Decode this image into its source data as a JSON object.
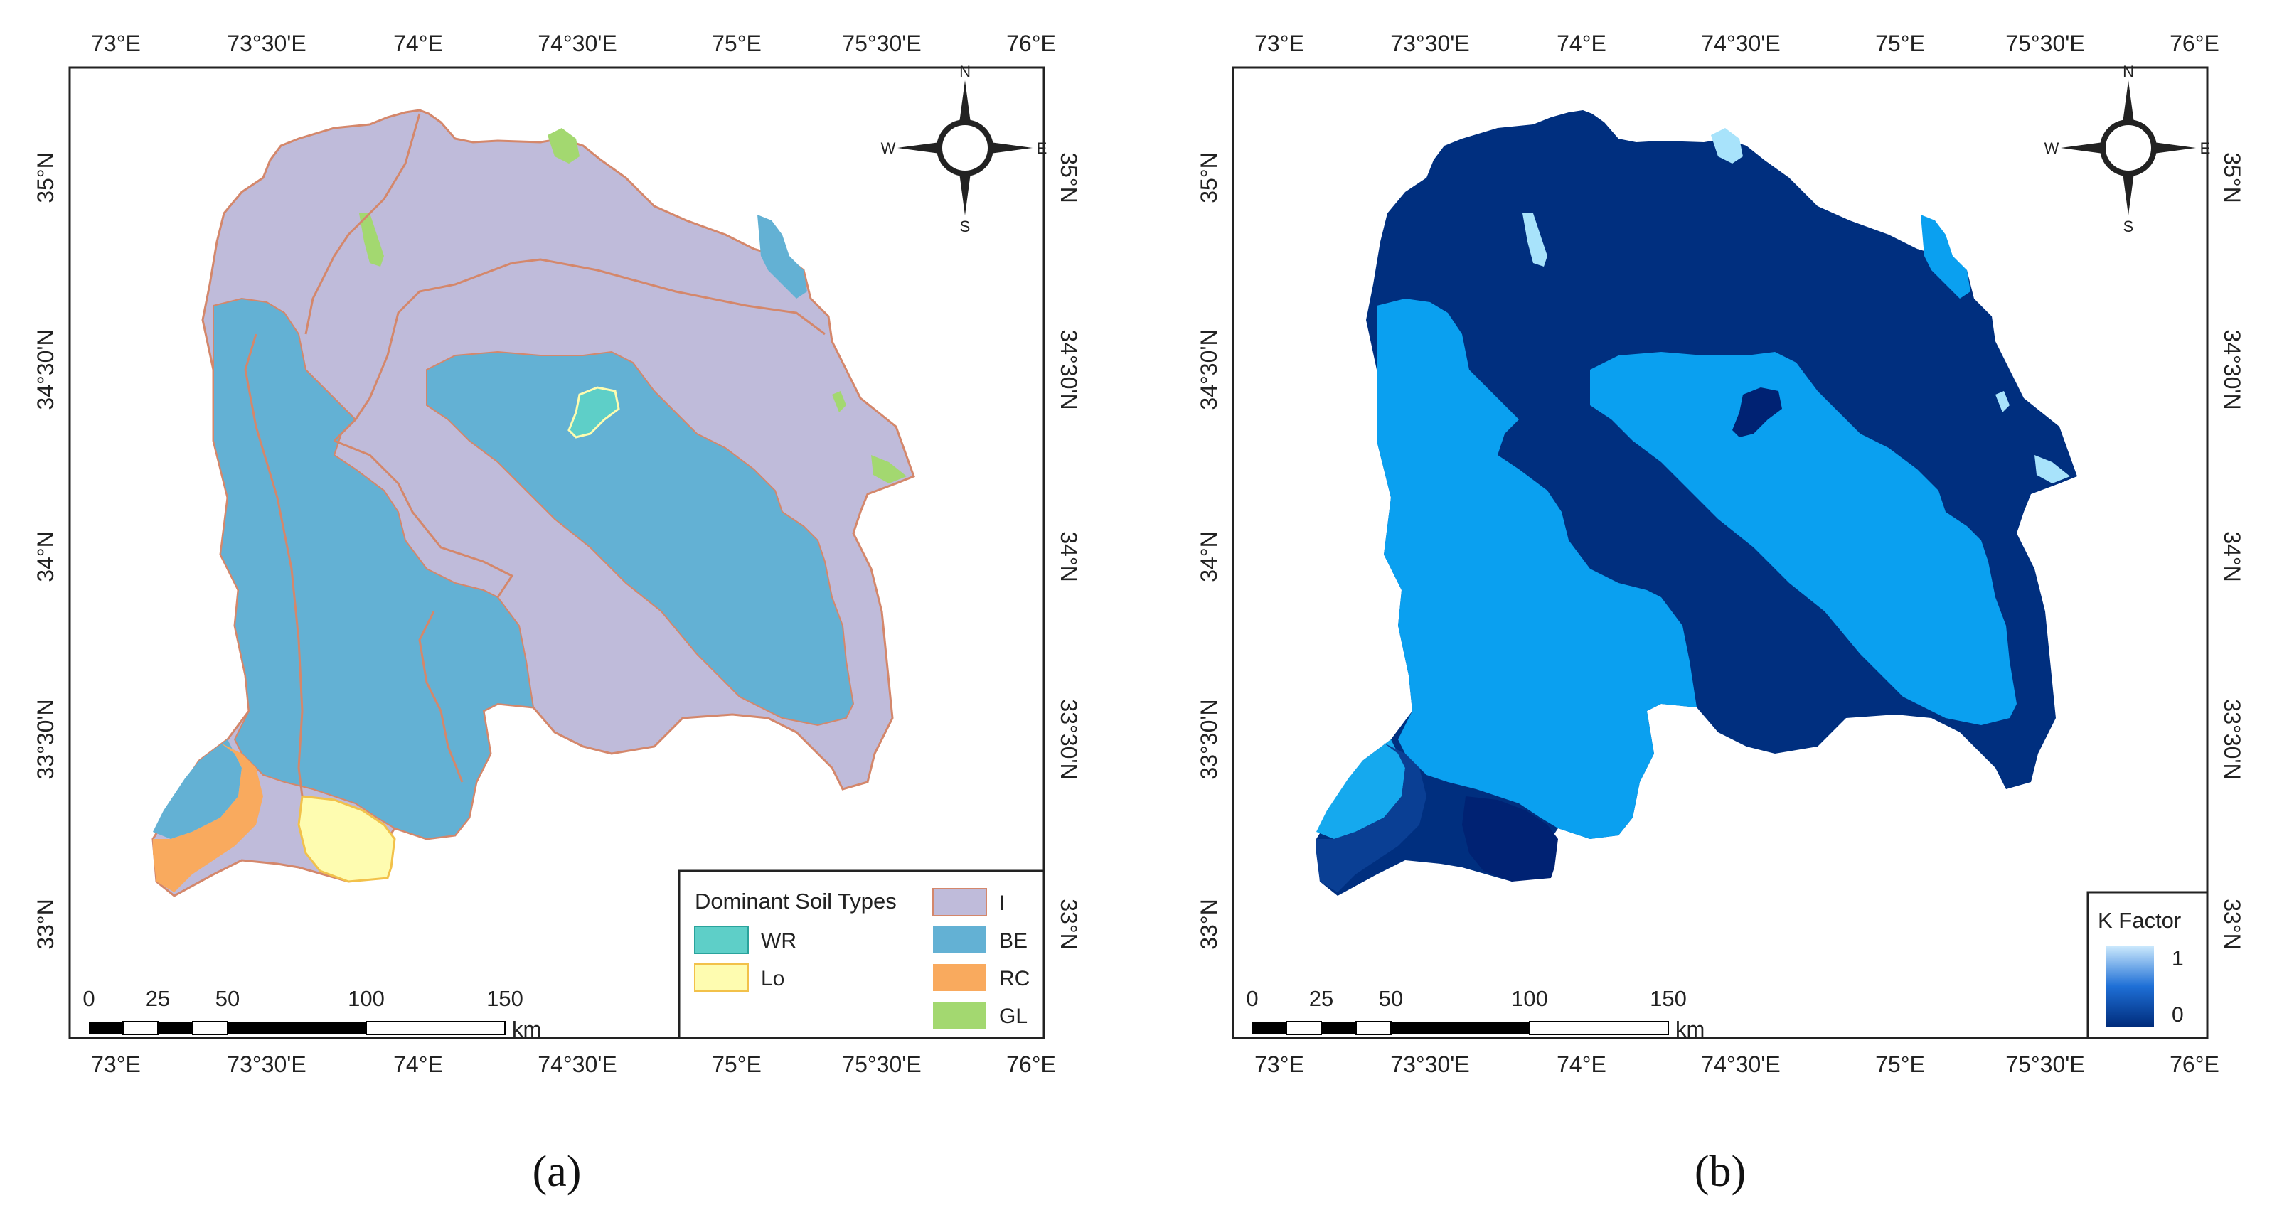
{
  "panels": [
    {
      "id": "a",
      "caption": "(a)",
      "lon_ticks": [
        "73°E",
        "73°30'E",
        "74°E",
        "74°30'E",
        "75°E",
        "75°30'E",
        "76°E"
      ],
      "lat_ticks": [
        "35°N",
        "34°30'N",
        "34°N",
        "33°30'N",
        "33°N"
      ],
      "legend": {
        "title": "Dominant Soil Types",
        "items": [
          {
            "code": "WR",
            "color": "#5ecfc8"
          },
          {
            "code": "Lo",
            "color": "#fefcb0"
          },
          {
            "code": "I",
            "color": "#bfbbda"
          },
          {
            "code": "BE",
            "color": "#63b1d4"
          },
          {
            "code": "RC",
            "color": "#f9aa5e"
          },
          {
            "code": "GL",
            "color": "#a3d870"
          }
        ]
      },
      "scalebar": {
        "labels": [
          "0",
          "25",
          "50",
          "100",
          "150"
        ],
        "unit": "km"
      },
      "compass": {
        "n": "N",
        "s": "S",
        "e": "E",
        "w": "W"
      }
    },
    {
      "id": "b",
      "caption": "(b)",
      "lon_ticks": [
        "73°E",
        "73°30'E",
        "74°E",
        "74°30'E",
        "75°E",
        "75°30'E",
        "76°E"
      ],
      "lat_ticks": [
        "35°N",
        "34°30'N",
        "34°N",
        "33°30'N",
        "33°N"
      ],
      "legend": {
        "title": "K Factor",
        "max_label": "1",
        "min_label": "0",
        "gradient_top": "#cdeafd",
        "gradient_bottom": "#002b7a"
      },
      "scalebar": {
        "labels": [
          "0",
          "25",
          "50",
          "100",
          "150"
        ],
        "unit": "km"
      },
      "compass": {
        "n": "N",
        "s": "S",
        "e": "E",
        "w": "W"
      }
    }
  ]
}
